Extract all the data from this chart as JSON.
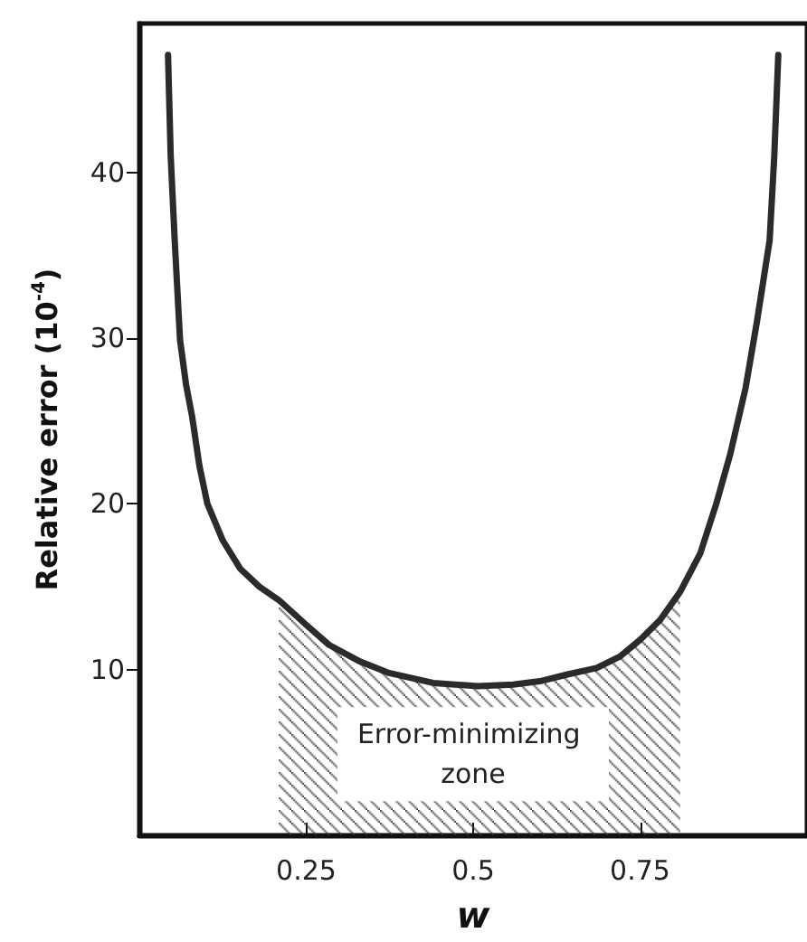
{
  "chart_data": {
    "type": "line",
    "xlabel": "w",
    "ylabel": "Relative error (10$^{-4}$)",
    "xlim": [
      0,
      1
    ],
    "xticks": [
      0.25,
      0.5,
      0.75
    ],
    "ylim": [
      0,
      49
    ],
    "yticks": [
      10,
      20,
      30,
      40
    ],
    "series": [
      {
        "color": "#2b2b2b",
        "x": [
          0.043,
          0.047,
          0.053,
          0.061,
          0.07,
          0.079,
          0.09,
          0.102,
          0.125,
          0.151,
          0.18,
          0.209,
          0.25,
          0.284,
          0.33,
          0.374,
          0.44,
          0.507,
          0.56,
          0.6,
          0.64,
          0.685,
          0.72,
          0.75,
          0.78,
          0.81,
          0.84,
          0.864,
          0.885,
          0.908,
          0.925,
          0.944,
          0.951,
          0.957
        ],
        "values": [
          47.1,
          41,
          35.9,
          29.9,
          27.2,
          25.3,
          22.3,
          20.0,
          17.8,
          16.1,
          15.0,
          14.2,
          12.7,
          11.5,
          10.5,
          9.8,
          9.2,
          9.0,
          9.1,
          9.3,
          9.7,
          10.1,
          10.8,
          11.8,
          13.0,
          14.7,
          17.0,
          20.0,
          23,
          27.0,
          31,
          35.9,
          41,
          47.1
        ]
      },
      {
        "type": "area",
        "color": "#333333",
        "x": [
          0.209,
          0.25,
          0.284,
          0.33,
          0.374,
          0.44,
          0.507,
          0.56,
          0.6,
          0.64,
          0.685,
          0.72,
          0.75,
          0.78,
          0.81
        ],
        "values": [
          14.2,
          12.7,
          11.5,
          10.5,
          9.8,
          9.2,
          9.0,
          9.1,
          9.3,
          9.7,
          10.1,
          10.8,
          11.8,
          13.0,
          14.7
        ]
      }
    ],
    "annotations": [
      "Error-minimizing zone"
    ],
    "grid": false,
    "marker": "none",
    "line_style": "solid"
  }
}
